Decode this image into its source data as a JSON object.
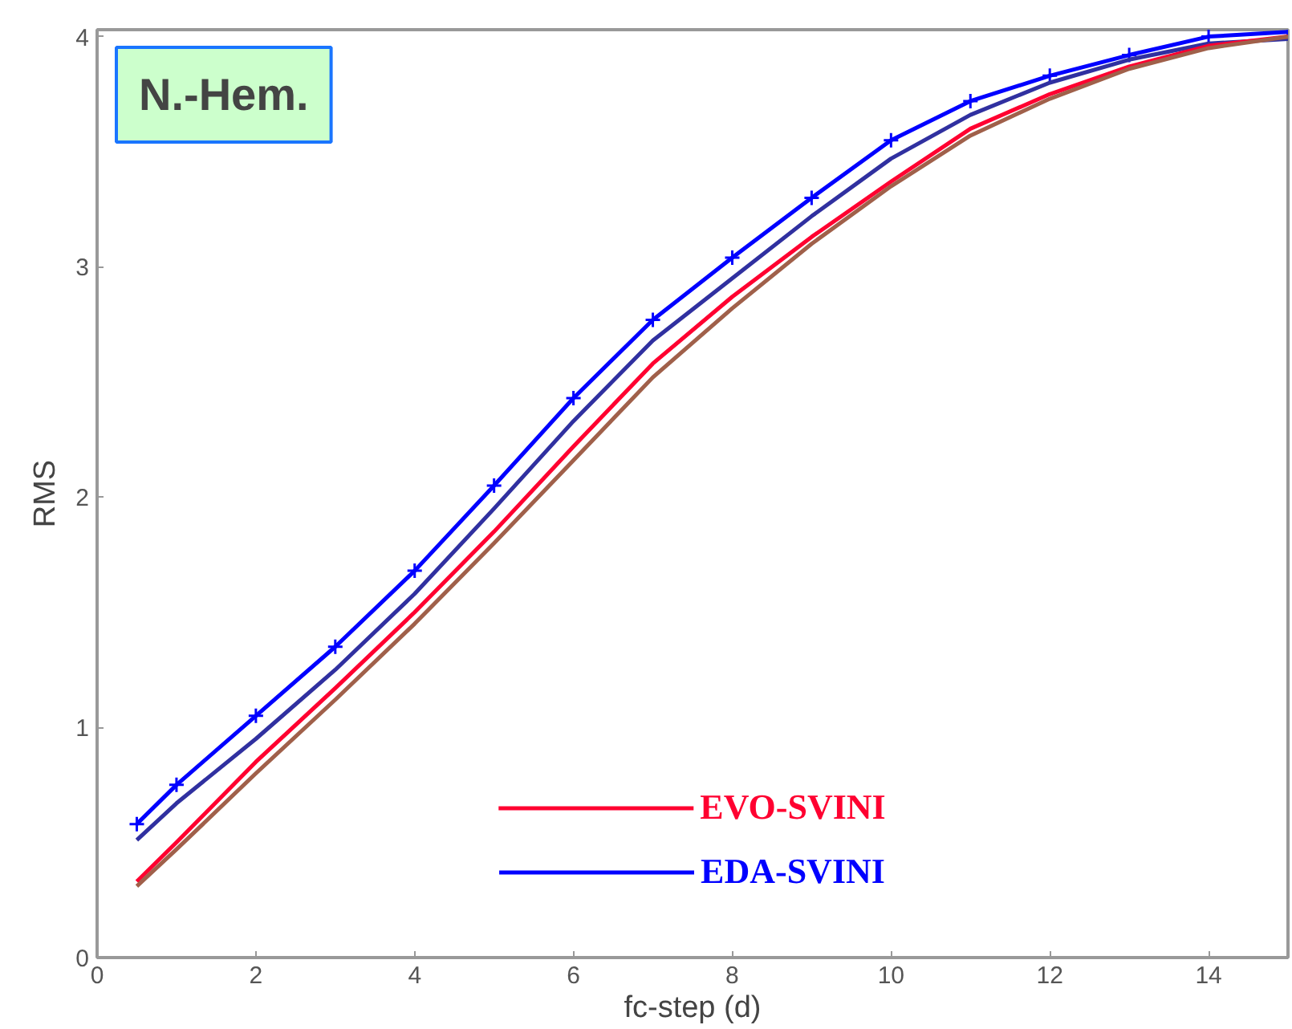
{
  "chart_data": {
    "type": "line",
    "xlabel": "fc-step (d)",
    "ylabel": "RMS",
    "annotations": [
      "N.-Hem."
    ],
    "x": [
      0.5,
      1,
      2,
      3,
      4,
      5,
      6,
      7,
      8,
      9,
      10,
      11,
      12,
      13,
      14,
      15
    ],
    "xlim": [
      0,
      15
    ],
    "ylim": [
      0,
      4.03
    ],
    "xticks": [
      0,
      2,
      4,
      6,
      8,
      10,
      12,
      14
    ],
    "yticks": [
      0,
      1,
      2,
      3,
      4
    ],
    "grid": false,
    "legend": "bottom",
    "line_style": "solid",
    "marker": "none",
    "series": [
      {
        "name": "EDA-SVINI",
        "color": "#0000ff",
        "marker": "cross",
        "values": [
          0.58,
          0.75,
          1.05,
          1.35,
          1.68,
          2.05,
          2.43,
          2.77,
          3.04,
          3.3,
          3.55,
          3.72,
          3.83,
          3.92,
          4.0,
          4.02
        ]
      },
      {
        "color": "#3030a0",
        "values": [
          0.51,
          0.67,
          0.95,
          1.25,
          1.58,
          1.95,
          2.33,
          2.68,
          2.95,
          3.22,
          3.47,
          3.66,
          3.8,
          3.9,
          3.97,
          3.99
        ]
      },
      {
        "name": "EVO-SVINI",
        "color": "#ff0030",
        "values": [
          0.33,
          0.5,
          0.85,
          1.17,
          1.5,
          1.85,
          2.22,
          2.58,
          2.87,
          3.13,
          3.37,
          3.6,
          3.75,
          3.87,
          3.96,
          4.0
        ]
      },
      {
        "color": "#a0604a",
        "values": [
          0.31,
          0.47,
          0.8,
          1.12,
          1.45,
          1.8,
          2.16,
          2.52,
          2.82,
          3.1,
          3.35,
          3.57,
          3.73,
          3.86,
          3.95,
          4.0
        ]
      }
    ]
  }
}
